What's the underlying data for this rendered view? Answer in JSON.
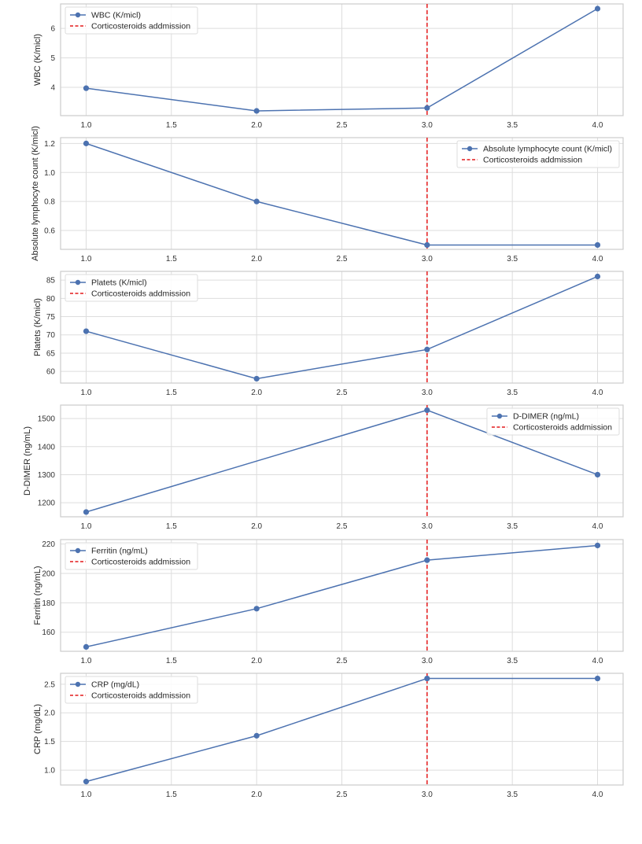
{
  "figure": {
    "series_color": "#4c72b0",
    "vline_color": "#e41a1c",
    "grid_color": "#dddddd",
    "frame_color": "#cccccc",
    "vline_label": "Corticosteroids addmission"
  },
  "chart_data": [
    {
      "type": "line",
      "title": "",
      "xlabel": "",
      "ylabel": "WBC (K/micl)",
      "legend_label": "WBC (K/micl)",
      "legend_position": "top-left",
      "x": [
        1.0,
        2.0,
        3.0,
        4.0
      ],
      "values": [
        3.97,
        3.2,
        3.3,
        6.67
      ],
      "xlim": [
        0.85,
        4.15
      ],
      "ylim": [
        3.04,
        6.83
      ],
      "xticks": [
        1.0,
        1.5,
        2.0,
        2.5,
        3.0,
        3.5,
        4.0
      ],
      "xtick_labels": [
        "1.0",
        "1.5",
        "2.0",
        "2.5",
        "3.0",
        "3.5",
        "4.0"
      ],
      "yticks": [
        4,
        5,
        6
      ],
      "ytick_labels": [
        "4",
        "5",
        "6"
      ],
      "vline_x": 3.0,
      "grid": true
    },
    {
      "type": "line",
      "title": "",
      "xlabel": "",
      "ylabel": "Absolute lymphocyte count (K/micl)",
      "legend_label": "Absolute lymphocyte count (K/micl)",
      "legend_position": "top-right",
      "x": [
        1.0,
        2.0,
        3.0,
        4.0
      ],
      "values": [
        1.2,
        0.8,
        0.5,
        0.5
      ],
      "xlim": [
        0.85,
        4.15
      ],
      "ylim": [
        0.47,
        1.24
      ],
      "xticks": [
        1.0,
        1.5,
        2.0,
        2.5,
        3.0,
        3.5,
        4.0
      ],
      "xtick_labels": [
        "1.0",
        "1.5",
        "2.0",
        "2.5",
        "3.0",
        "3.5",
        "4.0"
      ],
      "yticks": [
        0.6,
        0.8,
        1.0,
        1.2
      ],
      "ytick_labels": [
        "0.6",
        "0.8",
        "1.0",
        "1.2"
      ],
      "vline_x": 3.0,
      "grid": true
    },
    {
      "type": "line",
      "title": "",
      "xlabel": "",
      "ylabel": "Platets  (K/micl)",
      "legend_label": "Platets  (K/micl)",
      "legend_position": "top-left",
      "x": [
        1.0,
        2.0,
        3.0,
        4.0
      ],
      "values": [
        71,
        58,
        66,
        86
      ],
      "xlim": [
        0.85,
        4.15
      ],
      "ylim": [
        56.8,
        87.4
      ],
      "xticks": [
        1.0,
        1.5,
        2.0,
        2.5,
        3.0,
        3.5,
        4.0
      ],
      "xtick_labels": [
        "1.0",
        "1.5",
        "2.0",
        "2.5",
        "3.0",
        "3.5",
        "4.0"
      ],
      "yticks": [
        60,
        65,
        70,
        75,
        80,
        85
      ],
      "ytick_labels": [
        "60",
        "65",
        "70",
        "75",
        "80",
        "85"
      ],
      "vline_x": 3.0,
      "grid": true
    },
    {
      "type": "line",
      "title": "",
      "xlabel": "",
      "ylabel": "D-DIMER (ng/mL)",
      "legend_label": "D-DIMER (ng/mL)",
      "legend_position": "top-right",
      "x": [
        1.0,
        3.0,
        4.0
      ],
      "values": [
        1167,
        1530,
        1300
      ],
      "xlim": [
        0.85,
        4.15
      ],
      "ylim": [
        1150,
        1548
      ],
      "xticks": [
        1.0,
        1.5,
        2.0,
        2.5,
        3.0,
        3.5,
        4.0
      ],
      "xtick_labels": [
        "1.0",
        "1.5",
        "2.0",
        "2.5",
        "3.0",
        "3.5",
        "4.0"
      ],
      "yticks": [
        1200,
        1300,
        1400,
        1500
      ],
      "ytick_labels": [
        "1200",
        "1300",
        "1400",
        "1500"
      ],
      "vline_x": 3.0,
      "grid": true
    },
    {
      "type": "line",
      "title": "",
      "xlabel": "",
      "ylabel": "Ferritin (ng/mL)",
      "legend_label": "Ferritin (ng/mL)",
      "legend_position": "top-left",
      "x": [
        1.0,
        2.0,
        3.0,
        4.0
      ],
      "values": [
        150,
        176,
        209,
        219
      ],
      "xlim": [
        0.85,
        4.15
      ],
      "ylim": [
        147,
        223
      ],
      "xticks": [
        1.0,
        1.5,
        2.0,
        2.5,
        3.0,
        3.5,
        4.0
      ],
      "xtick_labels": [
        "1.0",
        "1.5",
        "2.0",
        "2.5",
        "3.0",
        "3.5",
        "4.0"
      ],
      "yticks": [
        160,
        180,
        200,
        220
      ],
      "ytick_labels": [
        "160",
        "180",
        "200",
        "220"
      ],
      "vline_x": 3.0,
      "grid": true
    },
    {
      "type": "line",
      "title": "",
      "xlabel": "",
      "ylabel": "CRP (mg/dL)",
      "legend_label": "CRP (mg/dL)",
      "legend_position": "top-left",
      "x": [
        1.0,
        2.0,
        3.0,
        4.0
      ],
      "values": [
        0.8,
        1.6,
        2.6,
        2.6
      ],
      "xlim": [
        0.85,
        4.15
      ],
      "ylim": [
        0.74,
        2.69
      ],
      "xticks": [
        1.0,
        1.5,
        2.0,
        2.5,
        3.0,
        3.5,
        4.0
      ],
      "xtick_labels": [
        "1.0",
        "1.5",
        "2.0",
        "2.5",
        "3.0",
        "3.5",
        "4.0"
      ],
      "yticks": [
        1.0,
        1.5,
        2.0,
        2.5
      ],
      "ytick_labels": [
        "1.0",
        "1.5",
        "2.0",
        "2.5"
      ],
      "vline_x": 3.0,
      "grid": true
    }
  ]
}
